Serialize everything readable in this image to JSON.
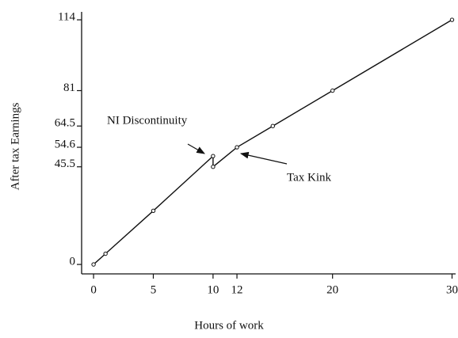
{
  "chart_data": {
    "type": "line",
    "x_label": "Hours of work",
    "y_label": "After tax Earnings",
    "x": [
      0,
      1,
      5,
      10,
      10,
      12,
      15,
      20,
      30
    ],
    "values": [
      0,
      5,
      25,
      50.5,
      45.5,
      54.6,
      64.5,
      81,
      114
    ],
    "color": "#111111",
    "xlim": [
      -1,
      30.3
    ],
    "ylim": [
      -4.4,
      117.7
    ],
    "xticks": [
      0,
      5,
      10,
      12,
      20,
      30
    ],
    "yticks": [
      0,
      45.5,
      54.6,
      64.5,
      81,
      114
    ],
    "grid": false,
    "annotations": [
      "NI Discontinuity",
      "Tax Kink"
    ]
  }
}
